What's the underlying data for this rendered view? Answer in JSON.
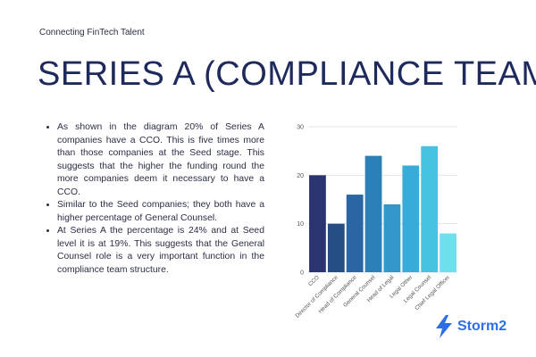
{
  "header": {
    "tagline": "Connecting FinTech Talent",
    "title": "SERIES A (COMPLIANCE TEAM)"
  },
  "body": {
    "bullets": [
      "As shown in the diagram 20% of Series A companies have a CCO. This is five times more than those companies at the Seed stage. This suggests that the higher the funding round the more companies deem it necessary to have a CCO.",
      "Similar to the Seed companies; they both have a higher percentage of General Counsel.",
      "At Series A the percentage is 24% and at Seed level it is at 19%. This suggests that the General Counsel role is a very important function in the compliance team structure."
    ]
  },
  "chart_data": {
    "type": "bar",
    "categories": [
      "CCO",
      "Director of Compliance",
      "Head of Compliance",
      "General Counsel",
      "Head of Legal",
      "Legal Other",
      "Legal Counsel",
      "Chief Legal Officer"
    ],
    "values": [
      20,
      10,
      16,
      24,
      14,
      22,
      26,
      8
    ],
    "colors": [
      "#2b3470",
      "#244d86",
      "#2a66a3",
      "#2c80b8",
      "#3395c9",
      "#38acd8",
      "#45c3e0",
      "#6ee0ec"
    ],
    "yticks": [
      0,
      10,
      20,
      30
    ],
    "ylim": [
      0,
      30
    ],
    "title": "",
    "xlabel": "",
    "ylabel": "",
    "grid": true
  },
  "logo": {
    "text": "Storm2",
    "icon": "lightning-bolt-icon",
    "color": "#2f6fe4"
  }
}
